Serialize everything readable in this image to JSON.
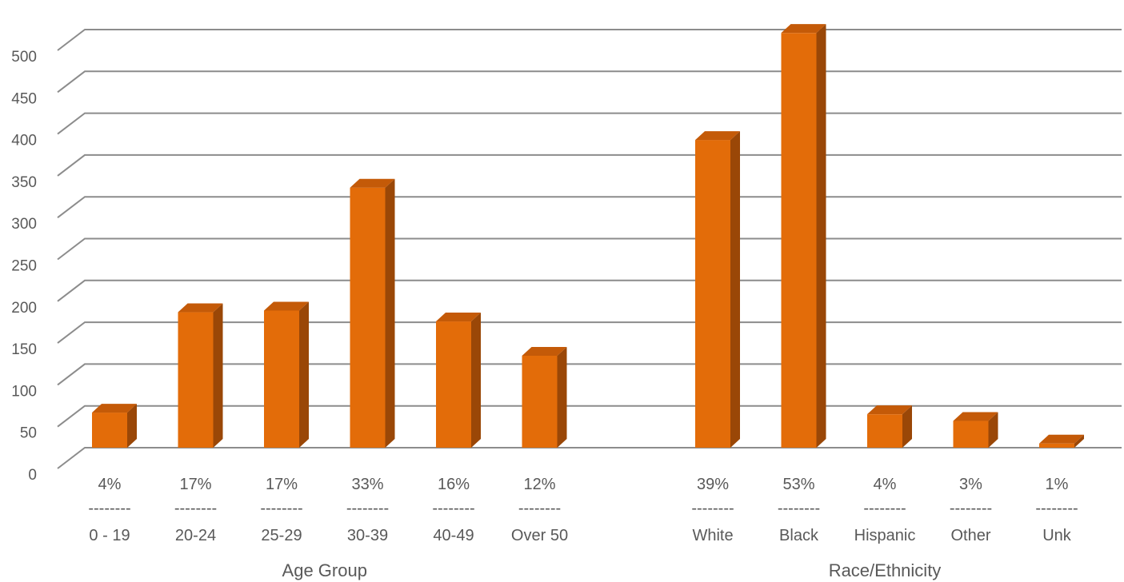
{
  "chart_data": {
    "type": "bar",
    "title": "",
    "xlabel": "",
    "ylabel": "",
    "ylim": [
      0,
      500
    ],
    "yticks": [
      "0",
      "50",
      "100",
      "150",
      "200",
      "250",
      "300",
      "350",
      "400",
      "450",
      "500"
    ],
    "grid": true,
    "style": "3d-column",
    "colors": {
      "bar_front": "#e36c09",
      "bar_side": "#9a4707",
      "bar_top": "#c45a08",
      "grid": "#8c8c8c",
      "text": "#595959"
    },
    "groups": [
      {
        "name": "Age Group",
        "categories": [
          "0 - 19",
          "20-24",
          "25-29",
          "30-39",
          "40-49",
          "Over 50"
        ],
        "values": [
          42,
          162,
          164,
          311,
          151,
          110
        ],
        "percent_labels": [
          "4%",
          "17%",
          "17%",
          "33%",
          "16%",
          "12%"
        ],
        "separator": "--------"
      },
      {
        "name": "Race/Ethnicity",
        "categories": [
          "White",
          "Black",
          "Hispanic",
          "Other",
          "Unk"
        ],
        "values": [
          368,
          496,
          40,
          32,
          5
        ],
        "percent_labels": [
          "39%",
          "53%",
          "4%",
          "3%",
          "1%"
        ],
        "separator": "--------"
      }
    ]
  }
}
